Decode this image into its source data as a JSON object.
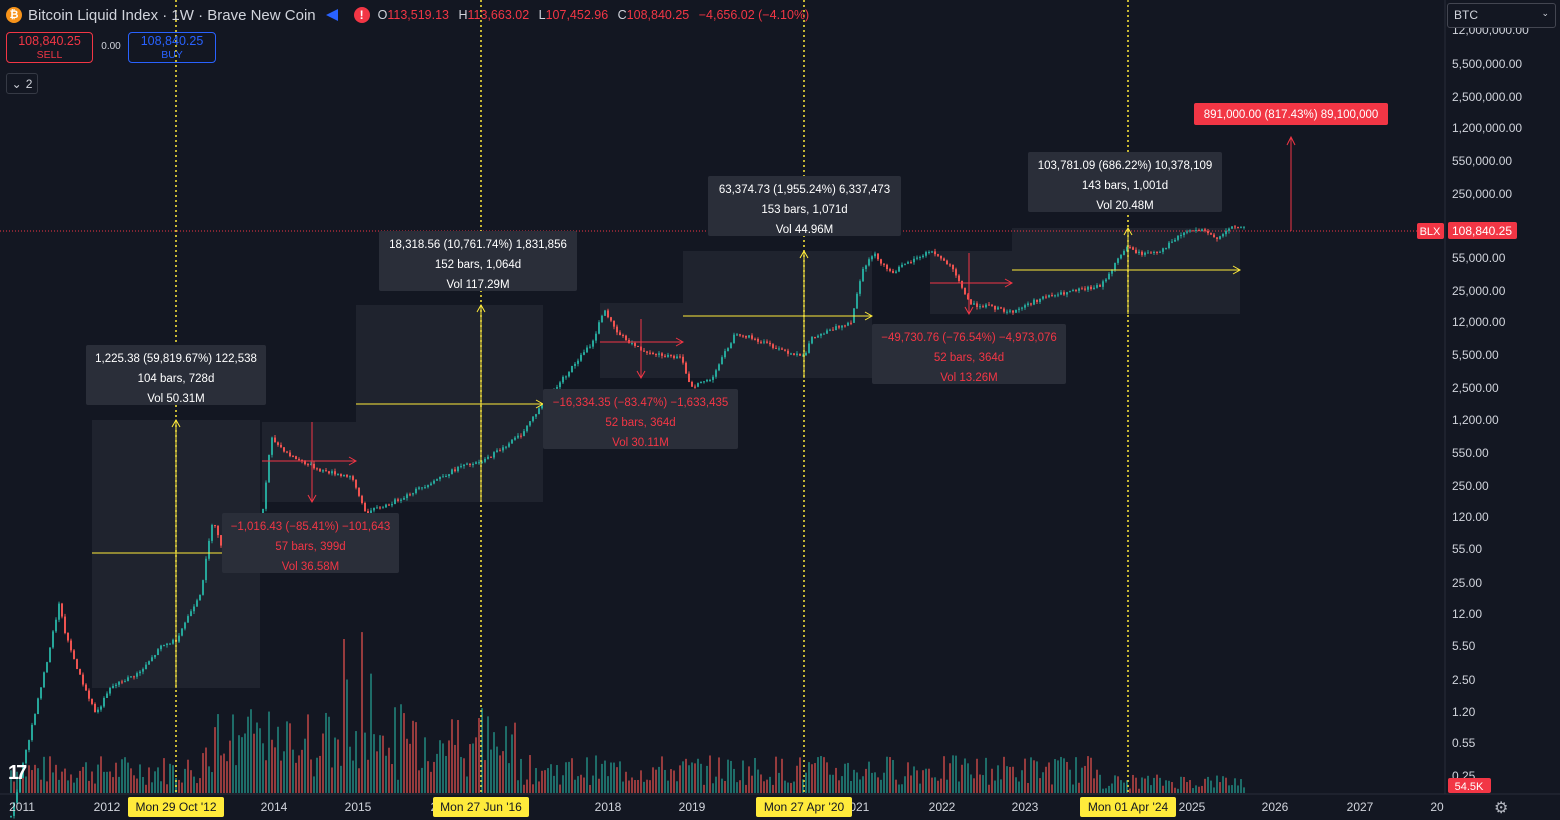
{
  "header": {
    "coin_glyph": "₿",
    "title": "Bitcoin Liquid Index · 1W · Brave New Coin",
    "alert_glyph": "!",
    "o_key": "O",
    "o_val": "113,519.13",
    "h_key": "H",
    "h_val": "113,663.02",
    "l_key": "L",
    "l_val": "107,452.96",
    "c_key": "C",
    "c_val": "108,840.25",
    "change": "−4,656.02 (−4.10%)"
  },
  "trading": {
    "sell_price": "108,840.25",
    "sell_label": "SELL",
    "spread": "0.00",
    "buy_price": "108,840.25",
    "buy_label": "BUY"
  },
  "collapse_count": "2",
  "symbol_search": {
    "value": "BTC",
    "chevron": "⌄"
  },
  "price_axis": [
    "12,000,000.00",
    "5,500,000.00",
    "2,500,000.00",
    "1,200,000.00",
    "550,000.00",
    "250,000.00",
    "55,000.00",
    "25,000.00",
    "12,000.00",
    "5,500.00",
    "2,500.00",
    "1,200.00",
    "550.00",
    "250.00",
    "120.00",
    "55.00",
    "25.00",
    "12.00",
    "5.50",
    "2.50",
    "1.20",
    "0.55",
    "0.25"
  ],
  "current_price": {
    "symbol": "BLX",
    "value": "108,840.25"
  },
  "volume_label": "54.5K",
  "time_axis": [
    "2011",
    "2012",
    "2014",
    "2015",
    "2017",
    "2018",
    "2019",
    "2021",
    "2022",
    "2023",
    "2025",
    "2026",
    "2027",
    "20"
  ],
  "date_tags": [
    "Mon 29 Oct '12",
    "Mon 27 Jun '16",
    "Mon 27 Apr '20",
    "Mon 01 Apr '24"
  ],
  "measures": {
    "up1": [
      "1,225.38 (59,819.67%) 122,538",
      "104 bars, 728d",
      "Vol 50.31M"
    ],
    "up2": [
      "18,318.56 (10,761.74%) 1,831,856",
      "152 bars, 1,064d",
      "Vol 117.29M"
    ],
    "up3": [
      "63,374.73 (1,955.24%) 6,337,473",
      "153 bars, 1,071d",
      "Vol 44.96M"
    ],
    "up4": [
      "103,781.09 (686.22%) 10,378,109",
      "143 bars, 1,001d",
      "Vol 20.48M"
    ],
    "down1": [
      "−1,016.43 (−85.41%) −101,643",
      "57 bars, 399d",
      "Vol 36.58M"
    ],
    "down2": [
      "−16,334.35 (−83.47%) −1,633,435",
      "52 bars, 364d",
      "Vol 30.11M"
    ],
    "down3": [
      "−49,730.76 (−76.54%) −4,973,076",
      "52 bars, 364d",
      "Vol 13.26M"
    ],
    "target": "891,000.00 (817.43%) 89,100,000"
  },
  "logo_text": "17",
  "settings_icon": "⚙",
  "colors": {
    "up": "#26a69a",
    "down": "#ef5350",
    "accent": "#2962ff",
    "marker": "#ffeb3b",
    "alert": "#f23645"
  }
}
